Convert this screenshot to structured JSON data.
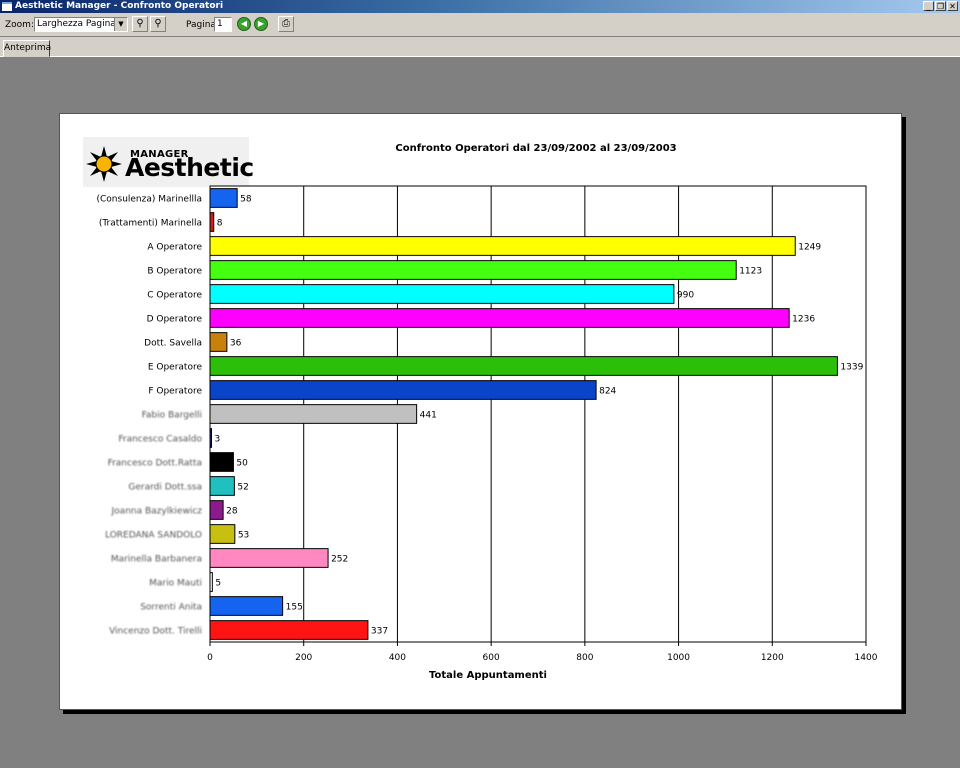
{
  "window": {
    "title": "Aesthetic Manager - Confronto Operatori",
    "buttons": [
      "_",
      "❐",
      "✕"
    ]
  },
  "toolbar": {
    "zoom_label": "Zoom:",
    "zoom_value": "Larghezza Pagina",
    "page_label": "Pagina:",
    "page_value": "1"
  },
  "tabs": [
    {
      "label": "Anteprima"
    }
  ],
  "logo": {
    "line1": "MANAGER",
    "line2": "Aesthetic"
  },
  "colors": {
    "accent": "#0a246a",
    "chrome": "#d4d0c8",
    "workspace": "#808080"
  },
  "chart_data": {
    "type": "bar",
    "orientation": "horizontal",
    "title": "Confronto Operatori dal 23/09/2002 al 23/09/2003",
    "xlabel": "Totale Appuntamenti",
    "ylabel": "",
    "xlim": [
      0,
      1400
    ],
    "xticks": [
      0,
      200,
      400,
      600,
      800,
      1000,
      1200,
      1400
    ],
    "grid": "vertical",
    "categories": [
      "(Consulenza) Marinellla",
      "(Trattamenti) Marinella",
      "A Operatore",
      "B Operatore",
      "C Operatore",
      "D Operatore",
      "Dott. Savella",
      "E Operatore",
      "F Operatore",
      "Fabio Bargelli",
      "Francesco Casaldo",
      "Francesco Dott.Ratta",
      "Gerardi Dott.ssa",
      "Joanna Bazylkiewicz",
      "LOREDANA SANDOLO",
      "Marinella Barbanera",
      "Mario Mauti",
      "Sorrenti Anita",
      "Vincenzo Dott. Tirelli"
    ],
    "values": [
      58,
      8,
      1249,
      1123,
      990,
      1236,
      36,
      1339,
      824,
      441,
      3,
      50,
      52,
      28,
      53,
      252,
      5,
      155,
      337
    ],
    "colors": [
      "#1464f0",
      "#c82020",
      "#ffff00",
      "#44ff10",
      "#00ffff",
      "#ff00ff",
      "#c8820a",
      "#2cbf0a",
      "#0a44c8",
      "#c0c0c0",
      "#1a2a8a",
      "#000000",
      "#20c0c0",
      "#8c1a8c",
      "#c8c010",
      "#ff88c0",
      "#ffffff",
      "#1464f0",
      "#ff1414"
    ],
    "blurred_labels": [
      9,
      10,
      11,
      12,
      13,
      14,
      15,
      16,
      17,
      18
    ]
  }
}
